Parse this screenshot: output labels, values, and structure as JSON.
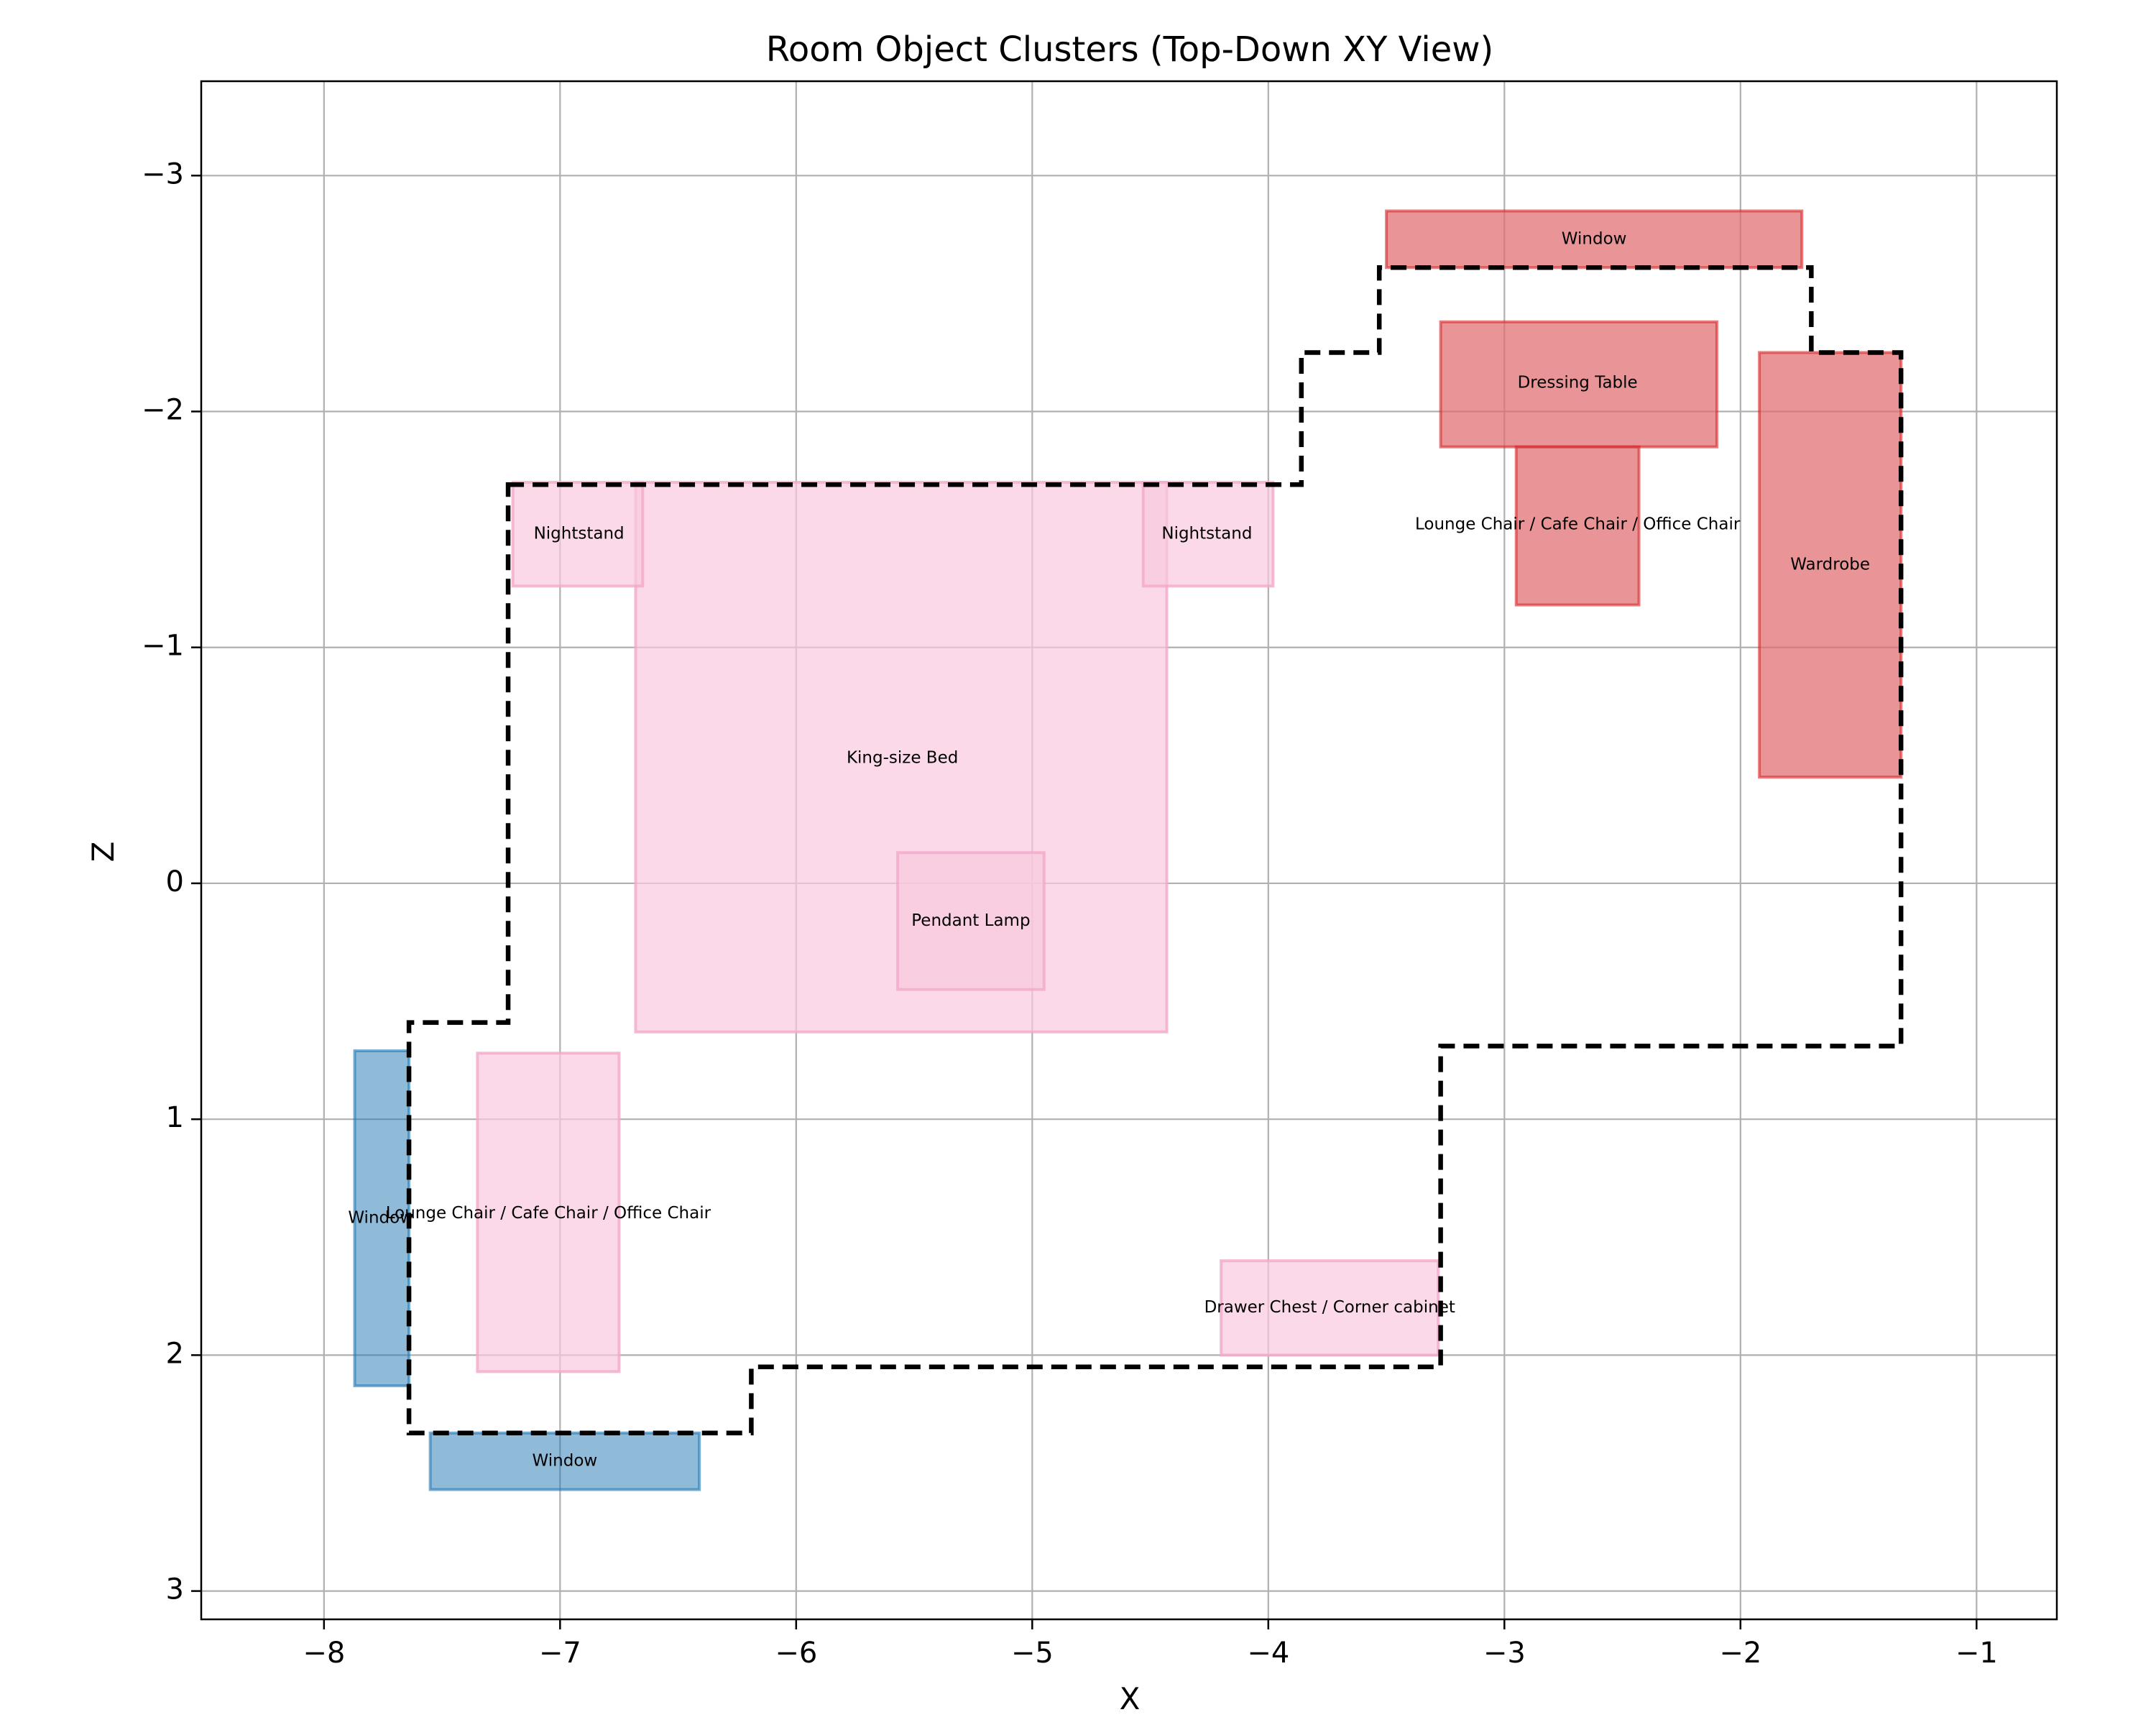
{
  "chart_data": {
    "type": "rectangles",
    "title": "Room Object Clusters (Top-Down XY View)",
    "xlabel": "X",
    "ylabel": "Z",
    "xlim": [
      -8.52,
      -0.66
    ],
    "ylim": [
      3.12,
      -3.4
    ],
    "y_inverted": true,
    "grid": true,
    "x_ticks": [
      {
        "value": -8,
        "label": "−8"
      },
      {
        "value": -7,
        "label": "−7"
      },
      {
        "value": -6,
        "label": "−6"
      },
      {
        "value": -5,
        "label": "−5"
      },
      {
        "value": -4,
        "label": "−4"
      },
      {
        "value": -3,
        "label": "−3"
      },
      {
        "value": -2,
        "label": "−2"
      },
      {
        "value": -1,
        "label": "−1"
      }
    ],
    "y_ticks": [
      {
        "value": -3,
        "label": "−3"
      },
      {
        "value": -2,
        "label": "−2"
      },
      {
        "value": -1,
        "label": "−1"
      },
      {
        "value": 0,
        "label": "0"
      },
      {
        "value": 1,
        "label": "1"
      },
      {
        "value": 2,
        "label": "2"
      },
      {
        "value": 3,
        "label": "3"
      }
    ],
    "colors": {
      "pink_fill": "#f9c9de",
      "pink_edge": "#f3a9c9",
      "red_fill": "#e06c6f",
      "red_edge": "#d62728",
      "blue_fill": "#1f77b4",
      "blue_edge": "#1f77b4",
      "boundary": "#000000"
    },
    "objects": [
      {
        "label": "King-size Bed",
        "x0": -6.68,
        "x1": -4.43,
        "z0": -1.7,
        "z1": 0.63,
        "color": "pink",
        "label_x": -5.55,
        "label_z": -0.53
      },
      {
        "label": "Nightstand",
        "x0": -7.2,
        "x1": -6.65,
        "z0": -1.7,
        "z1": -1.26,
        "color": "pink",
        "label_x": -6.92,
        "label_z": -1.48
      },
      {
        "label": "Nightstand",
        "x0": -4.53,
        "x1": -3.98,
        "z0": -1.7,
        "z1": -1.26,
        "color": "pink",
        "label_x": -4.26,
        "label_z": -1.48
      },
      {
        "label": "Pendant Lamp",
        "x0": -5.57,
        "x1": -4.95,
        "z0": -0.13,
        "z1": 0.45,
        "color": "pink",
        "label_x": -5.26,
        "label_z": 0.16
      },
      {
        "label": "Lounge Chair / Cafe Chair / Office Chair",
        "x0": -7.35,
        "x1": -6.75,
        "z0": 0.72,
        "z1": 2.07,
        "color": "pink",
        "label_x": -7.05,
        "label_z": 1.4
      },
      {
        "label": "Drawer Chest / Corner cabinet",
        "x0": -4.2,
        "x1": -3.28,
        "z0": 1.6,
        "z1": 2.0,
        "color": "pink",
        "label_x": -3.74,
        "label_z": 1.8
      },
      {
        "label": "Window",
        "x0": -7.87,
        "x1": -7.64,
        "z0": 0.71,
        "z1": 2.13,
        "color": "blue",
        "label_x": -7.76,
        "label_z": 1.42
      },
      {
        "label": "Window",
        "x0": -7.55,
        "x1": -6.41,
        "z0": 2.33,
        "z1": 2.57,
        "color": "blue",
        "label_x": -6.98,
        "label_z": 2.45
      },
      {
        "label": "Window",
        "x0": -3.5,
        "x1": -1.74,
        "z0": -2.85,
        "z1": -2.61,
        "color": "red",
        "label_x": -2.62,
        "label_z": -2.73
      },
      {
        "label": "Dressing Table",
        "x0": -3.27,
        "x1": -2.1,
        "z0": -2.38,
        "z1": -1.85,
        "color": "red",
        "label_x": -2.69,
        "label_z": -2.12
      },
      {
        "label": "Lounge Chair / Cafe Chair / Office Chair",
        "x0": -2.95,
        "x1": -2.43,
        "z0": -1.85,
        "z1": -1.18,
        "color": "red",
        "label_x": -2.69,
        "label_z": -1.52
      },
      {
        "label": "Wardrobe",
        "x0": -1.92,
        "x1": -1.32,
        "z0": -2.25,
        "z1": -0.45,
        "color": "red",
        "label_x": -1.62,
        "label_z": -1.35
      }
    ],
    "boundary": [
      [
        -7.22,
        -1.69
      ],
      [
        -3.86,
        -1.69
      ],
      [
        -3.86,
        -2.25
      ],
      [
        -3.53,
        -2.25
      ],
      [
        -3.53,
        -2.61
      ],
      [
        -1.7,
        -2.61
      ],
      [
        -1.7,
        -2.25
      ],
      [
        -1.32,
        -2.25
      ],
      [
        -1.32,
        0.69
      ],
      [
        -3.27,
        0.69
      ],
      [
        -3.27,
        2.05
      ],
      [
        -6.19,
        2.05
      ],
      [
        -6.19,
        2.33
      ],
      [
        -7.64,
        2.33
      ],
      [
        -7.64,
        0.59
      ],
      [
        -7.22,
        0.59
      ]
    ]
  }
}
